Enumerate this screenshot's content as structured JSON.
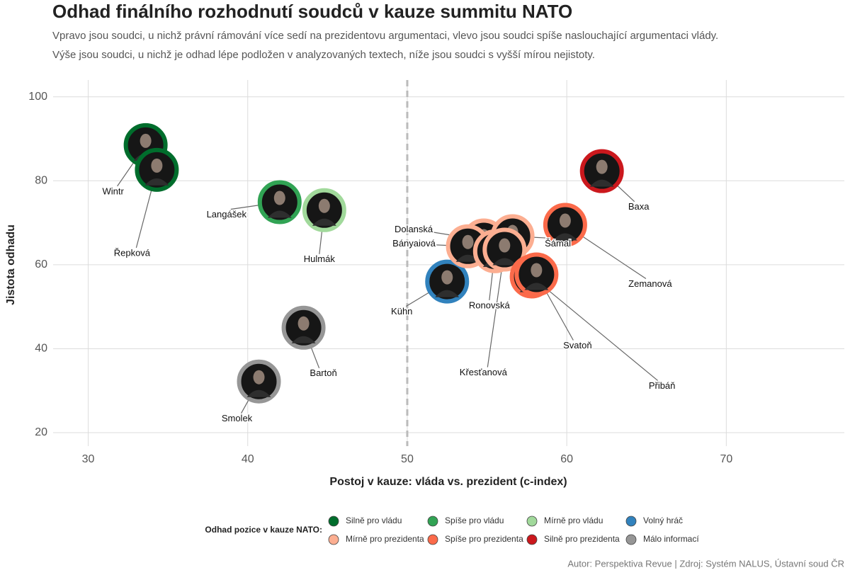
{
  "chart_data": {
    "type": "scatter",
    "title": "Odhad finálního rozhodnutí soudců v kauze summitu NATO",
    "subtitle": [
      "Vpravo jsou soudci, u nichž právní rámování více sedí na prezidentovu argumentaci, vlevo jsou soudci spíše naslouchající argumentaci vlády.",
      "Výše jsou soudci, u nichž je odhad lépe podložen v analyzovaných textech, níže jsou soudci s vyšší mírou nejistoty."
    ],
    "x_label": "Postoj v kauze: vláda vs. prezident (c-index)",
    "y_label": "Jistota odhadu",
    "legend_title": "Odhad pozice v kauze NATO:",
    "caption": "Autor: Perspektiva Revue | Zdroj: Systém NALUS, Ústavní soud ČR",
    "xlim": [
      27.8,
      77.4
    ],
    "ylim": [
      16.8,
      104
    ],
    "xticks": [
      30,
      40,
      50,
      60,
      70
    ],
    "yticks": [
      20,
      40,
      60,
      80,
      100
    ],
    "vline": 50,
    "grid": true,
    "series": [
      {
        "name": "Silně pro vládu",
        "color": "#006d2c",
        "labels": [
          "Wintr",
          "Řepková"
        ],
        "x": [
          33.6,
          34.3
        ],
        "values": [
          88.5,
          82.6
        ]
      },
      {
        "name": "Spíše pro vládu",
        "color": "#31a354",
        "labels": [
          "Langášek"
        ],
        "x": [
          42.0
        ],
        "values": [
          74.9
        ]
      },
      {
        "name": "Mírně pro vládu",
        "color": "#a1d99b",
        "labels": [
          "Hulmák"
        ],
        "x": [
          44.8
        ],
        "values": [
          73.0
        ]
      },
      {
        "name": "Volný hráč",
        "color": "#3182bd",
        "labels": [
          "Kühn"
        ],
        "x": [
          52.5
        ],
        "values": [
          56.0
        ]
      },
      {
        "name": "Mírně pro prezidenta",
        "color": "#fcae91",
        "labels": [
          "Dolanská",
          "Bányaiová",
          "Šámal",
          "Ronovská",
          "Křesťanová"
        ],
        "x": [
          54.8,
          53.8,
          56.6,
          55.5,
          56.1
        ],
        "values": [
          65.8,
          64.4,
          66.8,
          63.2,
          63.6
        ]
      },
      {
        "name": "Spíše pro prezidenta",
        "color": "#fb6a4a",
        "labels": [
          "Zemanová",
          "Přibáň",
          "Svatoň"
        ],
        "x": [
          59.9,
          57.8,
          58.1
        ],
        "values": [
          69.5,
          57.2,
          57.7
        ]
      },
      {
        "name": "Silně pro prezidenta",
        "color": "#cb181d",
        "labels": [
          "Baxa"
        ],
        "x": [
          62.2
        ],
        "values": [
          82.3
        ]
      },
      {
        "name": "Málo informací",
        "color": "#969696",
        "labels": [
          "Bartoň",
          "Smolek"
        ],
        "x": [
          43.5,
          40.7
        ],
        "values": [
          45.0,
          32.2
        ]
      }
    ]
  }
}
